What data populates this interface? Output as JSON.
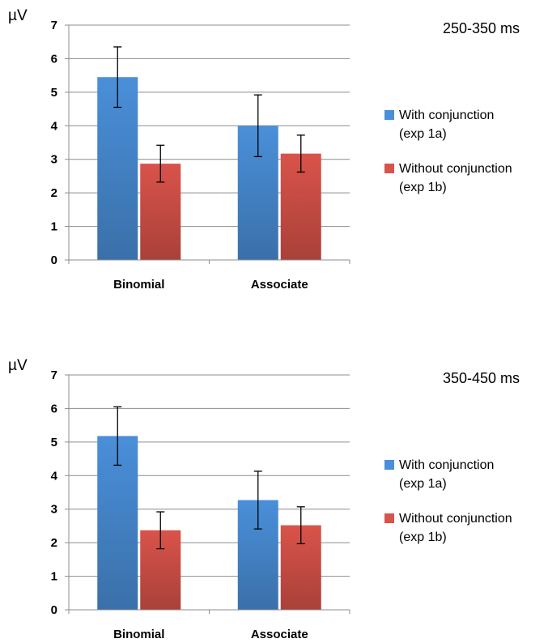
{
  "chart_data": [
    {
      "type": "bar",
      "title": "250-350 ms",
      "ylabel": "µV",
      "xlabel": "",
      "ylim": [
        0,
        7
      ],
      "yticks": [
        0,
        1,
        2,
        3,
        4,
        5,
        6,
        7
      ],
      "categories": [
        "Binomial",
        "Associate"
      ],
      "grid": true,
      "legend_position": "right",
      "series": [
        {
          "name": "With conjunction",
          "name_line2": "(exp 1a)",
          "color": "#4a8fd9",
          "values": [
            5.45,
            4.0
          ],
          "error": [
            0.9,
            0.92
          ]
        },
        {
          "name": "Without conjunction",
          "name_line2": "(exp 1b)",
          "color": "#d9534a",
          "values": [
            2.87,
            3.17
          ],
          "error": [
            0.55,
            0.55
          ]
        }
      ]
    },
    {
      "type": "bar",
      "title": "350-450 ms",
      "ylabel": "µV",
      "xlabel": "",
      "ylim": [
        0,
        7
      ],
      "yticks": [
        0,
        1,
        2,
        3,
        4,
        5,
        6,
        7
      ],
      "categories": [
        "Binomial",
        "Associate"
      ],
      "grid": true,
      "legend_position": "right",
      "series": [
        {
          "name": "With conjunction",
          "name_line2": "(exp 1a)",
          "color": "#4a8fd9",
          "values": [
            5.18,
            3.27
          ],
          "error": [
            0.87,
            0.86
          ]
        },
        {
          "name": "Without conjunction",
          "name_line2": "(exp 1b)",
          "color": "#d9534a",
          "values": [
            2.37,
            2.52
          ],
          "error": [
            0.55,
            0.55
          ]
        }
      ]
    }
  ]
}
